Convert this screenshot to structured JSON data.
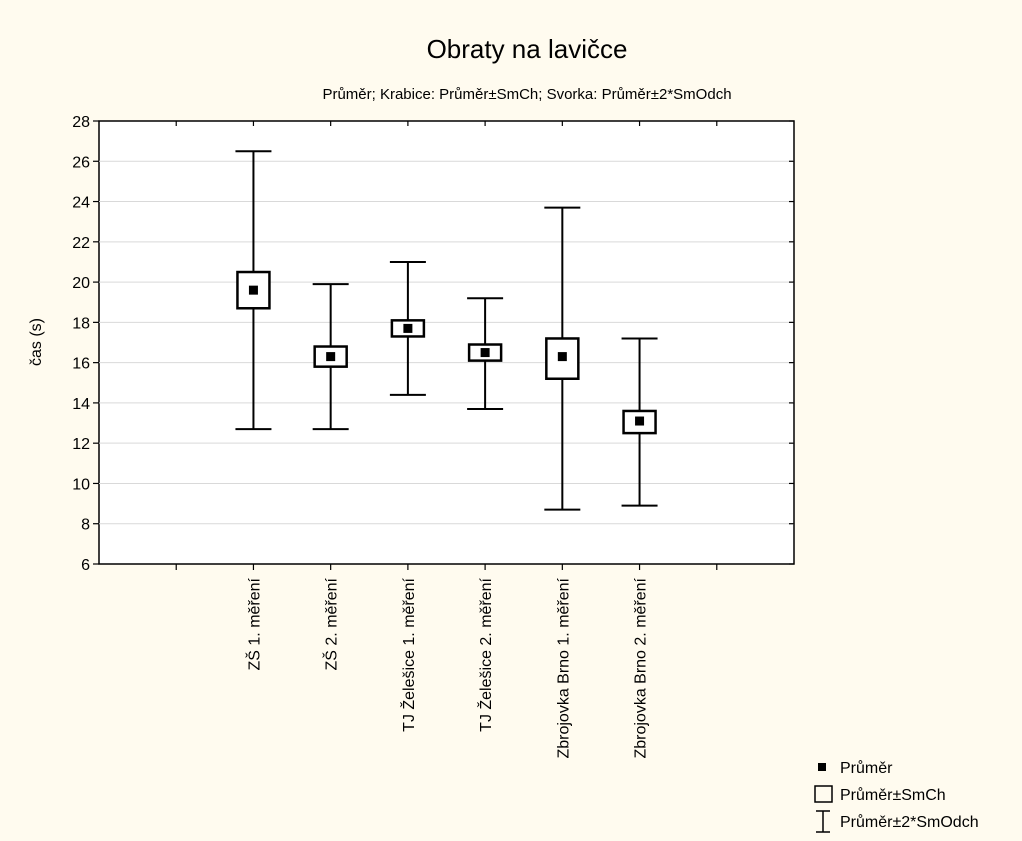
{
  "chart_data": {
    "type": "box",
    "title": "Obraty na lavičce",
    "subtitle": "Průměr; Krabice: Průměr±SmCh; Svorka: Průměr±2*SmOdch",
    "xlabel": "",
    "ylabel": "čas (s)",
    "ylim": [
      6,
      28
    ],
    "yticks": [
      6,
      8,
      10,
      12,
      14,
      16,
      18,
      20,
      22,
      24,
      26,
      28
    ],
    "grid": true,
    "legend_position": "bottom-right",
    "categories": [
      "ZŠ 1. měření",
      "ZŠ 2. měření",
      "TJ Želešice 1. měření",
      "TJ Želešice 2. měření",
      "Zbrojovka Brno 1. měření",
      "Zbrojovka Brno 2. měření"
    ],
    "mean": [
      19.6,
      16.3,
      17.7,
      16.5,
      16.3,
      13.1
    ],
    "box_low": [
      18.7,
      15.8,
      17.3,
      16.1,
      15.2,
      12.5
    ],
    "box_high": [
      20.5,
      16.8,
      18.1,
      16.9,
      17.2,
      13.6
    ],
    "whisker_low": [
      12.7,
      12.7,
      14.4,
      13.7,
      8.7,
      8.9
    ],
    "whisker_high": [
      26.5,
      19.9,
      21.0,
      19.2,
      23.7,
      17.2
    ],
    "legend": {
      "mean": "Průměr",
      "box": "Průměr±SmCh",
      "whisker": "Průměr±2*SmOdch"
    }
  }
}
